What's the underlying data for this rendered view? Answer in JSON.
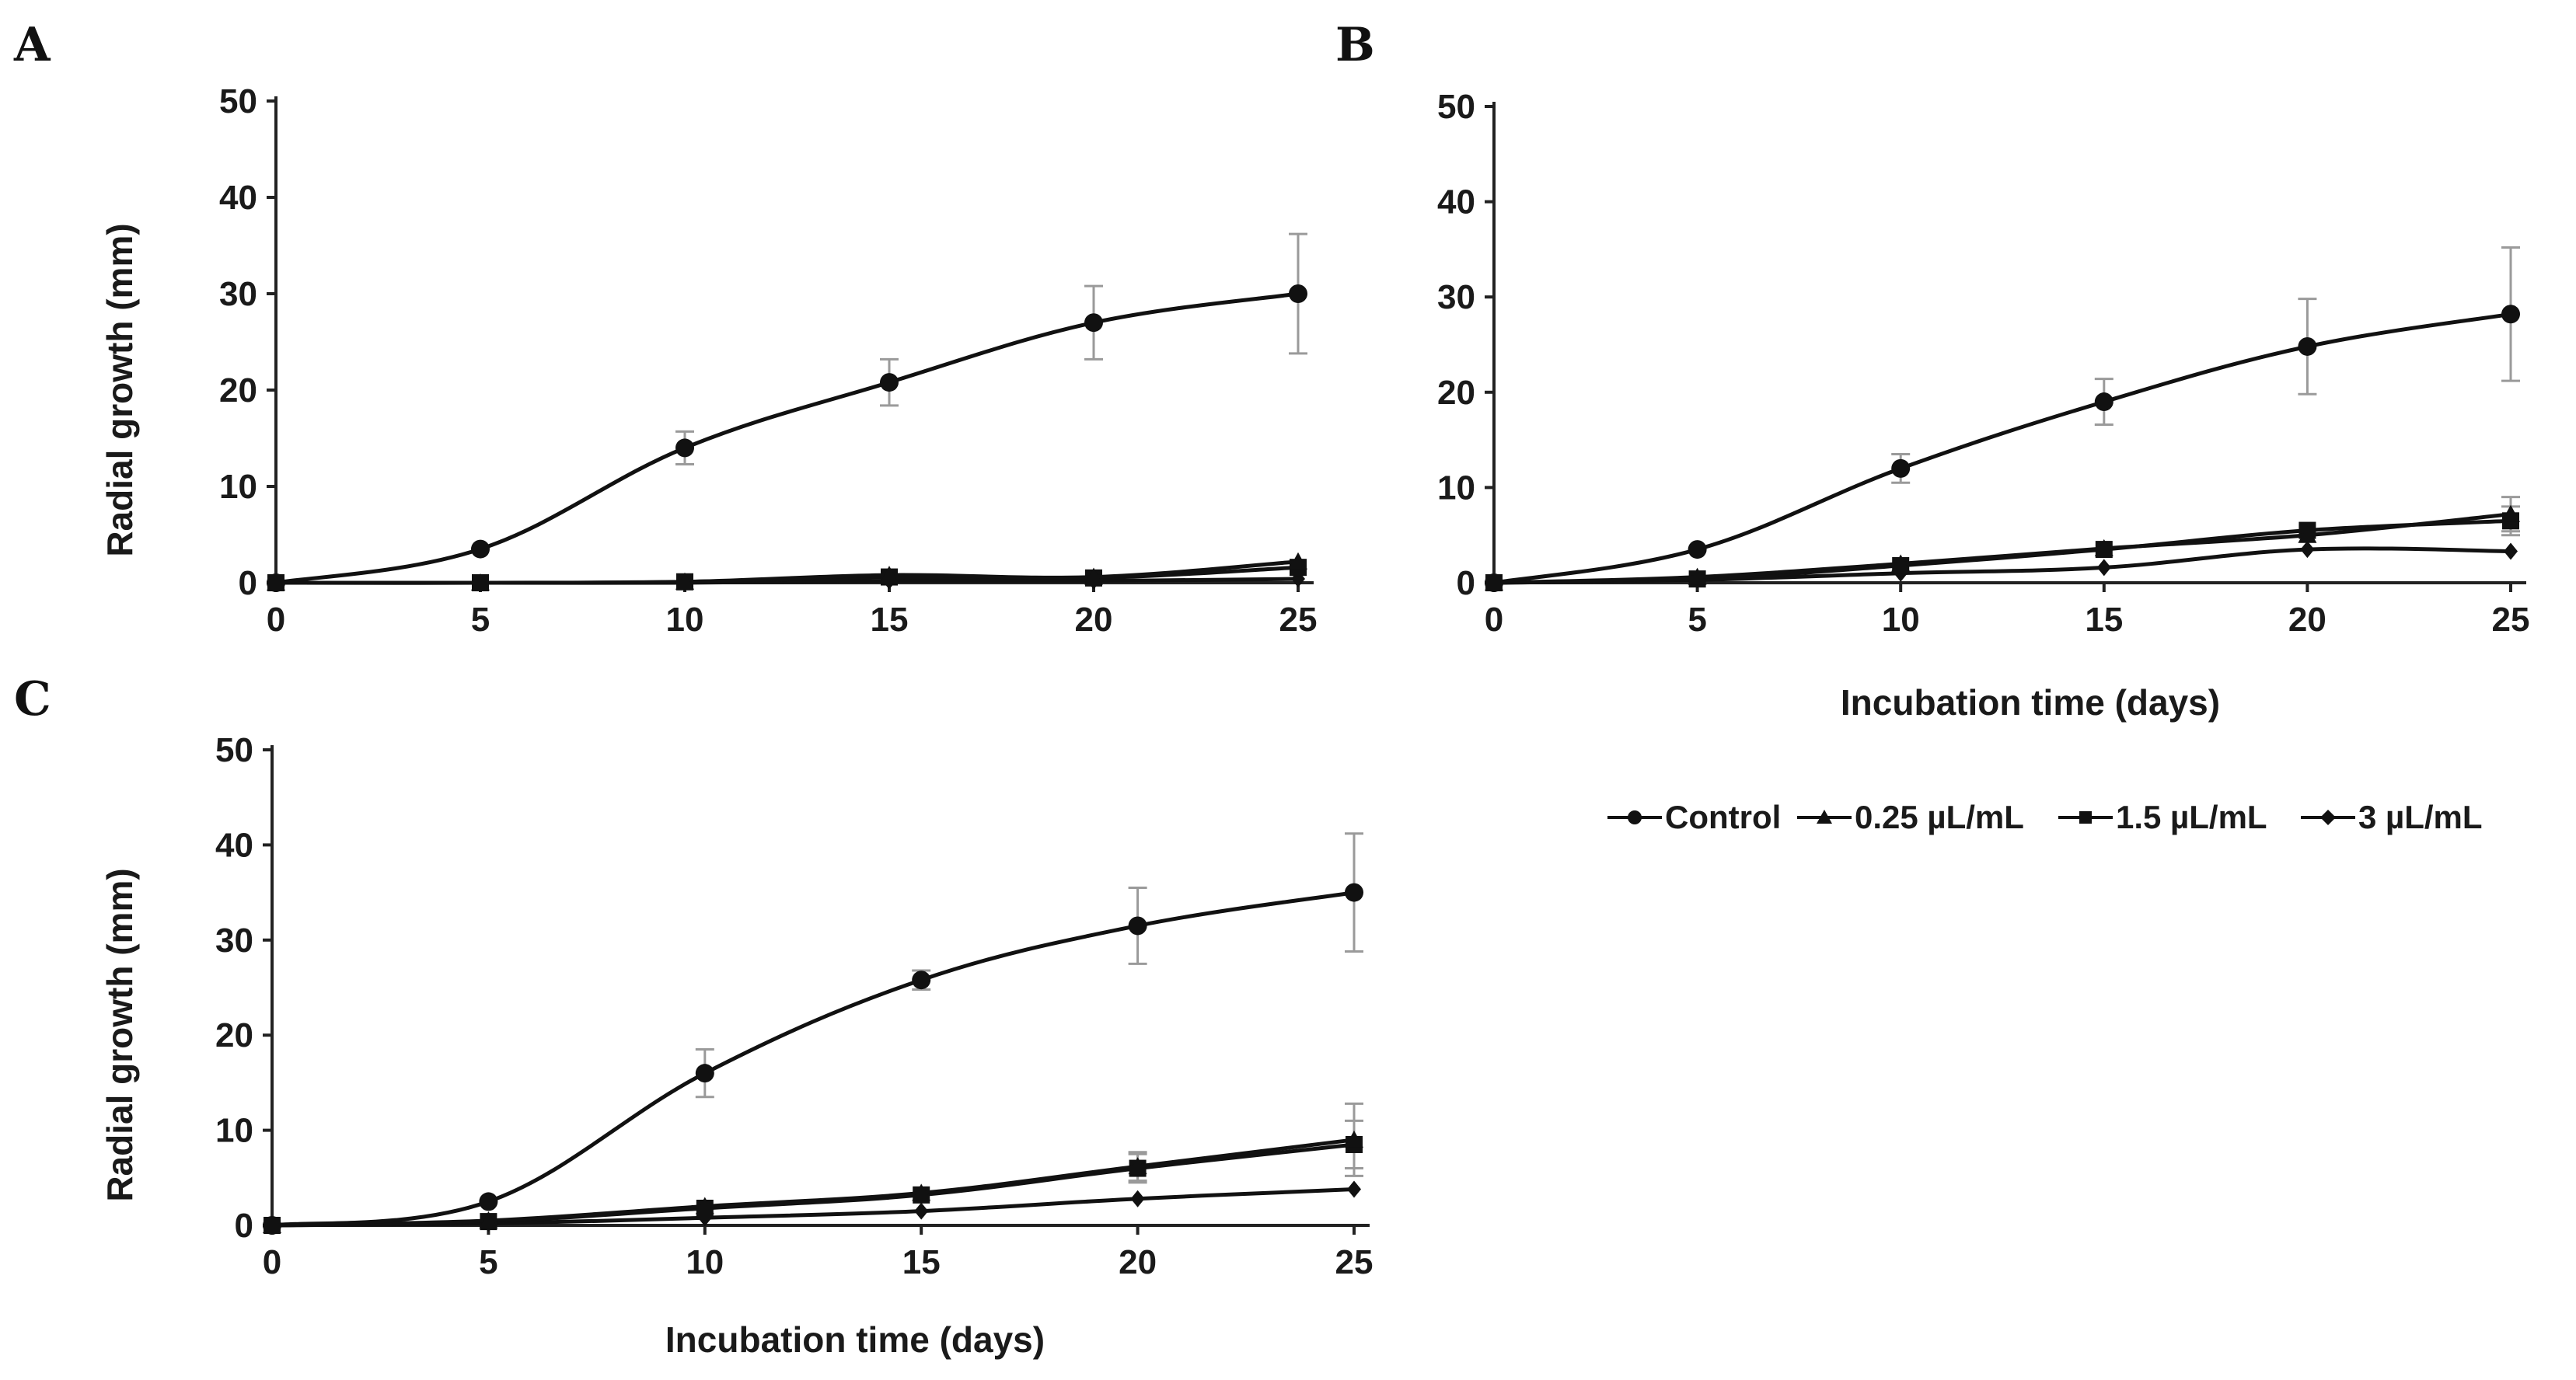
{
  "legend": {
    "items": [
      {
        "label": "Control",
        "marker": "circle"
      },
      {
        "label": "0.25 µL/mL",
        "marker": "triangle"
      },
      {
        "label": "1.5 µL/mL",
        "marker": "square"
      },
      {
        "label": "3 µL/mL",
        "marker": "diamond"
      }
    ]
  },
  "chart_data": [
    {
      "panel": "A",
      "type": "line",
      "xlabel": "",
      "ylabel": "Radial growth (mm)",
      "x": [
        0,
        5,
        10,
        15,
        20,
        25
      ],
      "xticks": [
        "0",
        "5",
        "10",
        "15",
        "20",
        "25"
      ],
      "yticks": [
        "0",
        "10",
        "20",
        "30",
        "40",
        "50"
      ],
      "xlim": [
        0,
        25
      ],
      "ylim": [
        0,
        50
      ],
      "series": [
        {
          "name": "Control",
          "marker": "circle",
          "values": [
            0,
            3.5,
            14,
            20.8,
            27,
            30
          ],
          "errors": [
            0,
            0,
            1.7,
            2.4,
            3.8,
            6.2
          ]
        },
        {
          "name": "0.25 µL/mL",
          "marker": "triangle",
          "values": [
            0,
            0,
            0.1,
            0.8,
            0.6,
            2.2
          ],
          "errors": [
            0,
            0,
            0,
            0,
            0,
            0
          ]
        },
        {
          "name": "1.5 µL/mL",
          "marker": "square",
          "values": [
            0,
            0,
            0.1,
            0.6,
            0.5,
            1.6
          ],
          "errors": [
            0,
            0,
            0,
            0,
            0,
            0
          ]
        },
        {
          "name": "3 µL/mL",
          "marker": "diamond",
          "values": [
            0,
            0,
            0,
            0.2,
            0.2,
            0.4
          ],
          "errors": [
            0,
            0,
            0,
            0,
            0,
            0
          ]
        }
      ]
    },
    {
      "panel": "B",
      "type": "line",
      "xlabel": "Incubation time (days)",
      "ylabel": "",
      "x": [
        0,
        5,
        10,
        15,
        20,
        25
      ],
      "xticks": [
        "0",
        "5",
        "10",
        "15",
        "20",
        "25"
      ],
      "yticks": [
        "0",
        "10",
        "20",
        "30",
        "40",
        "50"
      ],
      "xlim": [
        0,
        25
      ],
      "ylim": [
        0,
        50
      ],
      "series": [
        {
          "name": "Control",
          "marker": "circle",
          "values": [
            0,
            3.5,
            12,
            19,
            24.8,
            28.2
          ],
          "errors": [
            0,
            0,
            1.5,
            2.4,
            5,
            7
          ]
        },
        {
          "name": "0.25 µL/mL",
          "marker": "triangle",
          "values": [
            0,
            0.6,
            2,
            3.6,
            5,
            7.2
          ],
          "errors": [
            0,
            0,
            0,
            0,
            0,
            1.8
          ]
        },
        {
          "name": "1.5 µL/mL",
          "marker": "square",
          "values": [
            0,
            0.4,
            1.8,
            3.5,
            5.5,
            6.5
          ],
          "errors": [
            0,
            0,
            0,
            0,
            0,
            1.5
          ]
        },
        {
          "name": "3 µL/mL",
          "marker": "diamond",
          "values": [
            0,
            0.3,
            1,
            1.6,
            3.5,
            3.3
          ],
          "errors": [
            0,
            0,
            0,
            0,
            0,
            0
          ]
        }
      ]
    },
    {
      "panel": "C",
      "type": "line",
      "xlabel": "Incubation time (days)",
      "ylabel": "Radial growth (mm)",
      "x": [
        0,
        5,
        10,
        15,
        20,
        25
      ],
      "xticks": [
        "0",
        "5",
        "10",
        "15",
        "20",
        "25"
      ],
      "yticks": [
        "0",
        "10",
        "20",
        "30",
        "40",
        "50"
      ],
      "xlim": [
        0,
        25
      ],
      "ylim": [
        0,
        50
      ],
      "series": [
        {
          "name": "Control",
          "marker": "circle",
          "values": [
            0,
            2.5,
            16,
            25.8,
            31.5,
            35
          ],
          "errors": [
            0,
            0,
            2.5,
            1,
            4,
            6.2
          ]
        },
        {
          "name": "0.25 µL/mL",
          "marker": "triangle",
          "values": [
            0,
            0.5,
            2,
            3.4,
            6.2,
            9
          ],
          "errors": [
            0,
            0,
            0,
            0,
            1.5,
            3.8
          ]
        },
        {
          "name": "1.5 µL/mL",
          "marker": "square",
          "values": [
            0,
            0.4,
            1.8,
            3.2,
            6,
            8.5
          ],
          "errors": [
            0,
            0,
            0,
            0,
            1.5,
            2.5
          ]
        },
        {
          "name": "3 µL/mL",
          "marker": "diamond",
          "values": [
            0,
            0.2,
            0.8,
            1.5,
            2.8,
            3.8
          ],
          "errors": [
            0,
            0,
            0,
            0,
            0,
            0
          ]
        }
      ]
    }
  ]
}
